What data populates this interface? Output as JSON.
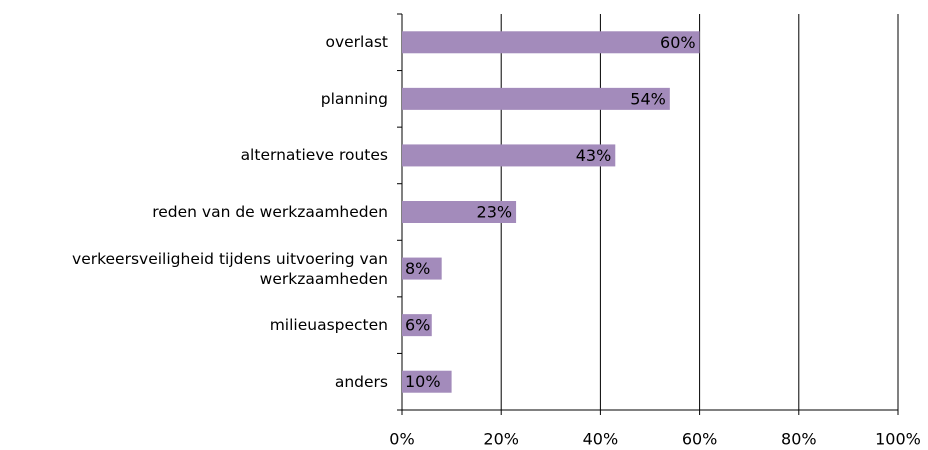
{
  "chart_data": {
    "type": "hbar",
    "categories": [
      "overlast",
      "planning",
      "alternatieve routes",
      "reden van de werkzaamheden",
      "verkeersveiligheid tijdens uitvoering van werkzaamheden",
      "milieuaspecten",
      "anders"
    ],
    "values": [
      60,
      54,
      43,
      23,
      8,
      6,
      10
    ],
    "value_labels": [
      "60%",
      "54%",
      "43%",
      "23%",
      "8%",
      "6%",
      "10%"
    ],
    "color": "#a38bbb",
    "xlim": [
      0,
      100
    ],
    "xticks": [
      {
        "value": 0,
        "label": "0%"
      },
      {
        "value": 20,
        "label": "20%"
      },
      {
        "value": 40,
        "label": "40%"
      },
      {
        "value": 60,
        "label": "60%"
      },
      {
        "value": 80,
        "label": "80%"
      },
      {
        "value": 100,
        "label": "100%"
      }
    ],
    "grid": true
  }
}
